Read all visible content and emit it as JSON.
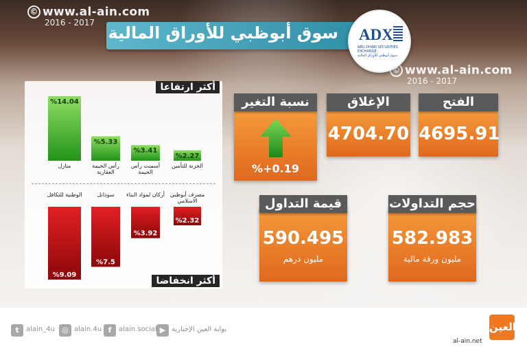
{
  "watermark": {
    "copyright": "©",
    "url": "www.al-ain.com",
    "years": "2016 - 2017"
  },
  "title": "سوق أبوظبي للأوراق المالية",
  "exchange_logo": {
    "abbr": "ADX",
    "name_ar": "سوق أبوظبي للأوراق المالية",
    "name_en": "ABU DHABI SECURITIES EXCHANGE"
  },
  "colors": {
    "gain": "#2fa51f",
    "loss": "#c40f12",
    "card": "#e8731f",
    "header": "#5a5a5a",
    "title": "#3fa0b9"
  },
  "chart_data": [
    {
      "type": "bar",
      "title": "أكثر ارتفاعا",
      "categories": [
        "منازل",
        "رأس الخيمة العقارية",
        "أسمنت رأس الخيمة",
        "الخزنة للتأمين"
      ],
      "values": [
        14.04,
        5.33,
        3.41,
        2.27
      ],
      "value_labels": [
        "%14.04",
        "%5.33",
        "%3.41",
        "%2.27"
      ],
      "ylim": [
        0,
        14.04
      ]
    },
    {
      "type": "bar",
      "title": "أكثر انخفاضا",
      "categories": [
        "الوطنية للتكافل",
        "سودانل",
        "أركان لمواد البناء",
        "مصرف أبوظبي الاسلامي"
      ],
      "values": [
        9.09,
        7.5,
        3.92,
        2.32
      ],
      "value_labels": [
        "%9.09",
        "%7.5",
        "%3.92",
        "%2.32"
      ],
      "ylim": [
        0,
        9.09
      ]
    }
  ],
  "cards": {
    "open": {
      "label": "الفتح",
      "value": "4695.91"
    },
    "close": {
      "label": "الإغلاق",
      "value": "4704.70"
    },
    "change": {
      "label": "نسبة التغير",
      "value": "%+0.19",
      "icon": "up-arrow-icon"
    },
    "volume": {
      "label": "حجم التداولات",
      "value": "582.983",
      "unit": "مليون ورقة مالية"
    },
    "turnover": {
      "label": "قيمة التداول",
      "value": "590.495",
      "unit": "مليون درهم"
    }
  },
  "footer": {
    "twitter": "alain_4u",
    "instagram": "alain.4u",
    "facebook": "alain.social",
    "youtube": "بوابة العين الإخبارية",
    "site": "al-ain.net",
    "logo_text": "العين"
  }
}
